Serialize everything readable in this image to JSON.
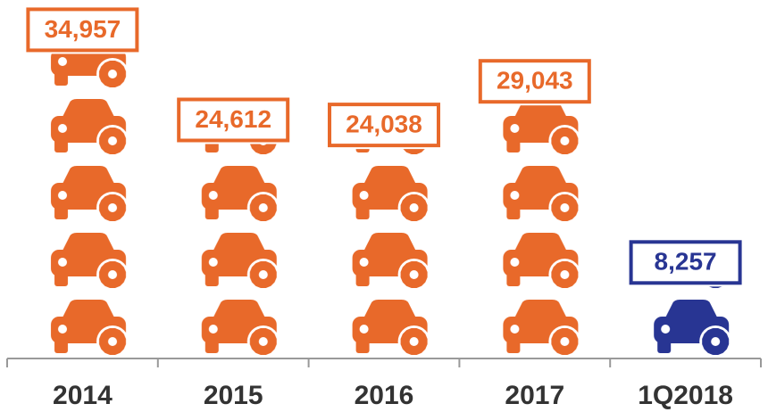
{
  "chart_data": {
    "type": "pictograph",
    "categories": [
      "2014",
      "2015",
      "2016",
      "2017",
      "1Q2018"
    ],
    "values": [
      34957,
      24612,
      24038,
      29043,
      8257
    ],
    "value_labels": [
      "34,957",
      "24,612",
      "24,038",
      "29,043",
      "8,257"
    ],
    "colors": [
      "#e8692a",
      "#e8692a",
      "#e8692a",
      "#e8692a",
      "#283593"
    ],
    "ylim": [
      0,
      35000
    ]
  }
}
